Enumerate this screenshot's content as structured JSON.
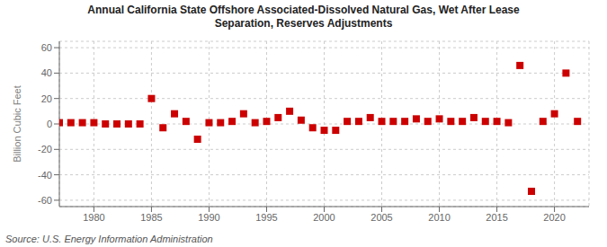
{
  "chart_data": {
    "type": "scatter",
    "title": "Annual California State Offshore Associated-Dissolved Natural Gas, Wet After Lease\nSeparation, Reserves Adjustments",
    "ylabel": "Billion Cubic Feet",
    "annotations": [
      "Source: U.S. Energy Information Administration"
    ],
    "x": [
      1977,
      1978,
      1979,
      1980,
      1981,
      1982,
      1983,
      1984,
      1985,
      1986,
      1987,
      1988,
      1989,
      1990,
      1991,
      1992,
      1993,
      1994,
      1995,
      1996,
      1997,
      1998,
      1999,
      2000,
      2001,
      2002,
      2003,
      2004,
      2005,
      2006,
      2007,
      2008,
      2009,
      2010,
      2011,
      2012,
      2013,
      2014,
      2015,
      2016,
      2017,
      2018,
      2019,
      2020,
      2021,
      2022
    ],
    "values": [
      1,
      1,
      1,
      1,
      0,
      0,
      0,
      0,
      20,
      -3,
      8,
      2,
      -12,
      1,
      1,
      2,
      8,
      1,
      2,
      5,
      10,
      3,
      -3,
      -5,
      -5,
      2,
      2,
      5,
      2,
      2,
      2,
      4,
      2,
      4,
      2,
      2,
      5,
      2,
      2,
      1,
      46,
      -53,
      2,
      8,
      40,
      2
    ],
    "color": "#cc0000",
    "marker": "square",
    "xlim": [
      1977,
      2023
    ],
    "ylim": [
      -65,
      65
    ],
    "xticks": [
      1980,
      1985,
      1990,
      1995,
      2000,
      2005,
      2010,
      2015,
      2020
    ],
    "yticks": [
      -60,
      -40,
      -20,
      0,
      20,
      40,
      60
    ],
    "grid": true
  }
}
